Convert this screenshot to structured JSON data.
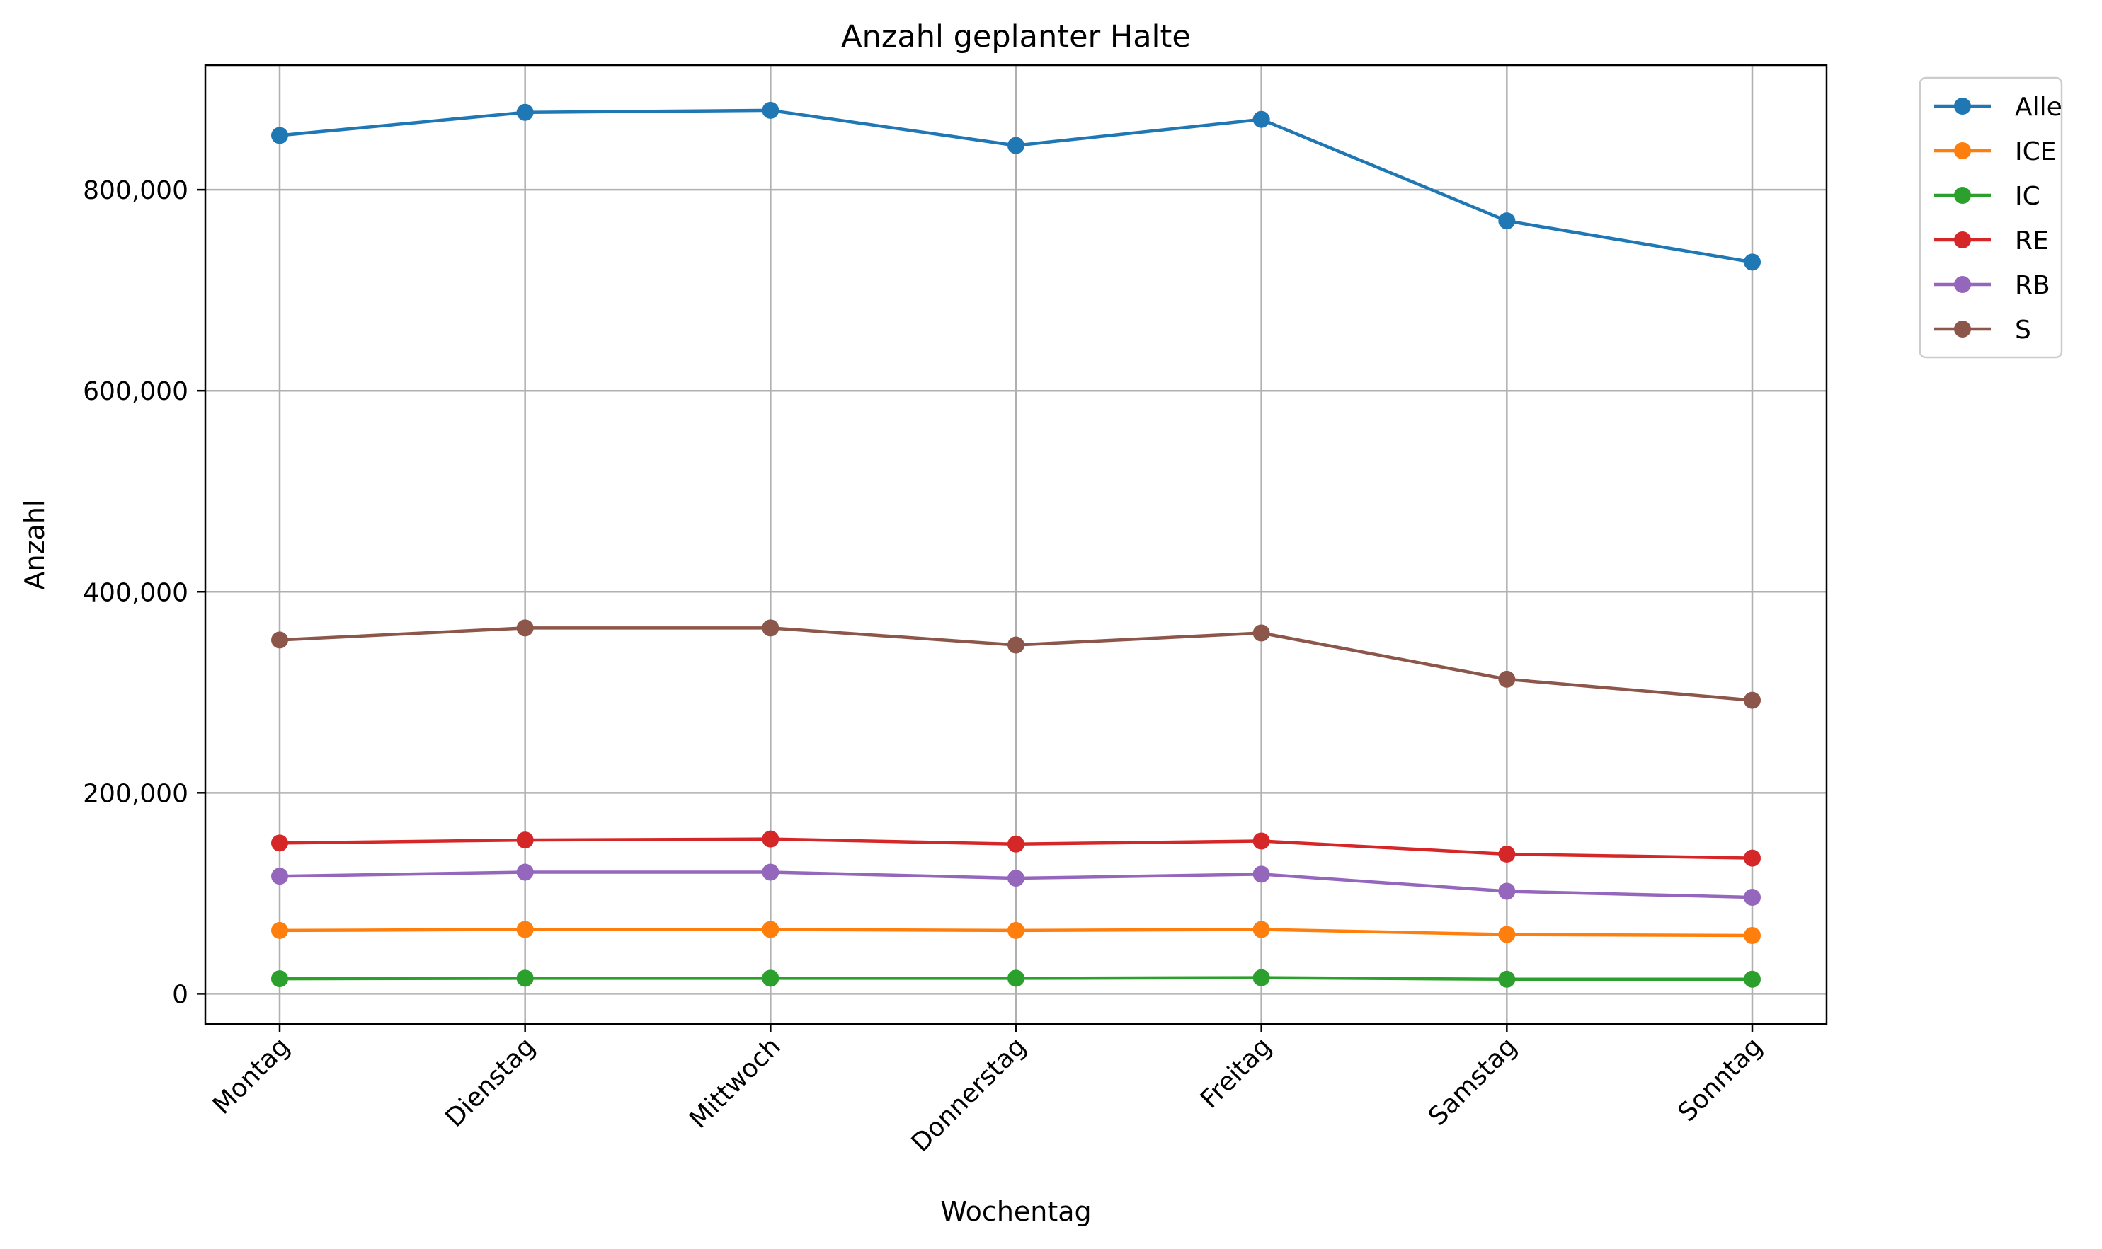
{
  "chart_data": {
    "type": "line",
    "title": "Anzahl geplanter Halte",
    "xlabel": "Wochentag",
    "ylabel": "Anzahl",
    "categories": [
      "Montag",
      "Dienstag",
      "Mittwoch",
      "Donnerstag",
      "Freitag",
      "Samstag",
      "Sonntag"
    ],
    "ylim": [
      -30000,
      924000
    ],
    "yticks": [
      0,
      200000,
      400000,
      600000,
      800000
    ],
    "ytick_labels": [
      "0",
      "200,000",
      "400,000",
      "600,000",
      "800,000"
    ],
    "grid": true,
    "legend_position": "outside-top-right",
    "marker": "circle",
    "series": [
      {
        "name": "Alle",
        "color": "#1f77b4",
        "values": [
          854000,
          877000,
          879000,
          844000,
          870000,
          769000,
          728000
        ]
      },
      {
        "name": "ICE",
        "color": "#ff7f0e",
        "values": [
          63000,
          64000,
          64000,
          63000,
          64000,
          59000,
          58000
        ]
      },
      {
        "name": "IC",
        "color": "#2ca02c",
        "values": [
          15000,
          15500,
          15500,
          15500,
          16000,
          14500,
          14500
        ]
      },
      {
        "name": "RE",
        "color": "#d62728",
        "values": [
          150000,
          153000,
          154000,
          149000,
          152000,
          139000,
          135000
        ]
      },
      {
        "name": "RB",
        "color": "#9467bd",
        "values": [
          117000,
          121000,
          121000,
          115000,
          119000,
          102000,
          96000
        ]
      },
      {
        "name": "S",
        "color": "#8c564b",
        "values": [
          352000,
          364000,
          364000,
          347000,
          359000,
          313000,
          292000
        ]
      }
    ]
  }
}
